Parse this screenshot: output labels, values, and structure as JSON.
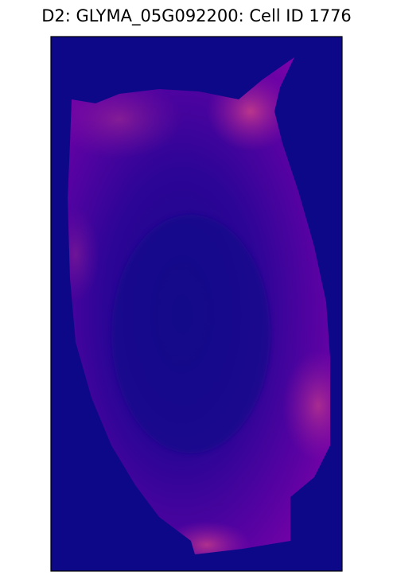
{
  "title": "D2: GLYMA_05G092200: Cell ID 1776"
}
